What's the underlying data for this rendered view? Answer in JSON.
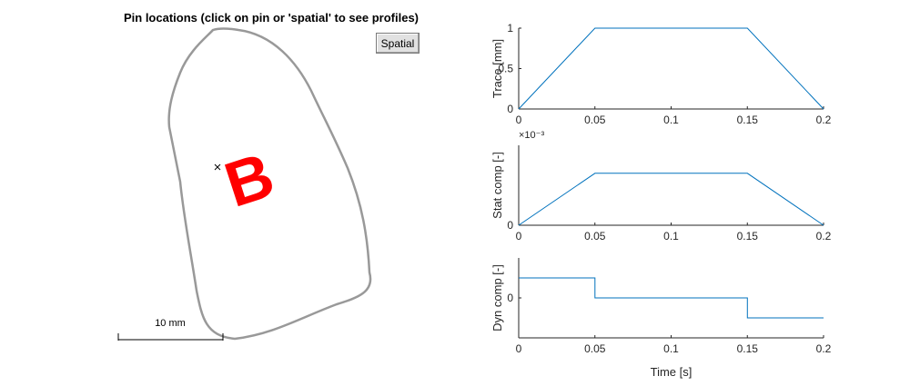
{
  "left_panel": {
    "title": "Pin locations (click on pin or 'spatial' to see profiles)",
    "spatial_button": "Spatial",
    "scale_bar_label": "10 mm",
    "glyph": "B",
    "colors": {
      "outline": "#999999",
      "glyph": "#ff0000",
      "marker": "#000000"
    }
  },
  "chart_data": [
    {
      "type": "line",
      "ylabel": "Trace [mm]",
      "xlabel": "",
      "x": [
        0,
        0.05,
        0.15,
        0.2
      ],
      "y": [
        0,
        1,
        1,
        0
      ],
      "xlim": [
        0,
        0.2
      ],
      "ylim": [
        0,
        1
      ],
      "xticks": [
        "0",
        "0.05",
        "0.1",
        "0.15",
        "0.2"
      ],
      "yticks": [
        "0",
        "0.5",
        "1"
      ],
      "color": "#0072bd"
    },
    {
      "type": "line",
      "ylabel": "Stat comp [-]",
      "xlabel": "",
      "exponent_label": "×10⁻³",
      "x": [
        0,
        0.05,
        0.15,
        0.2
      ],
      "y": [
        0,
        0.65,
        0.65,
        0
      ],
      "xlim": [
        0,
        0.2
      ],
      "ylim": [
        0,
        1
      ],
      "xticks": [
        "0",
        "0.05",
        "0.1",
        "0.15",
        "0.2"
      ],
      "yticks": [
        "0"
      ],
      "color": "#0072bd"
    },
    {
      "type": "line",
      "ylabel": "Dyn comp [-]",
      "xlabel": "Time [s]",
      "x": [
        0,
        0.05,
        0.05,
        0.15,
        0.15,
        0.2
      ],
      "y": [
        0.5,
        0.5,
        0,
        0,
        -0.5,
        -0.5
      ],
      "xlim": [
        0,
        0.2
      ],
      "ylim": [
        -1,
        1
      ],
      "xticks": [
        "0",
        "0.05",
        "0.1",
        "0.15",
        "0.2"
      ],
      "yticks": [
        "0"
      ],
      "color": "#0072bd"
    }
  ]
}
